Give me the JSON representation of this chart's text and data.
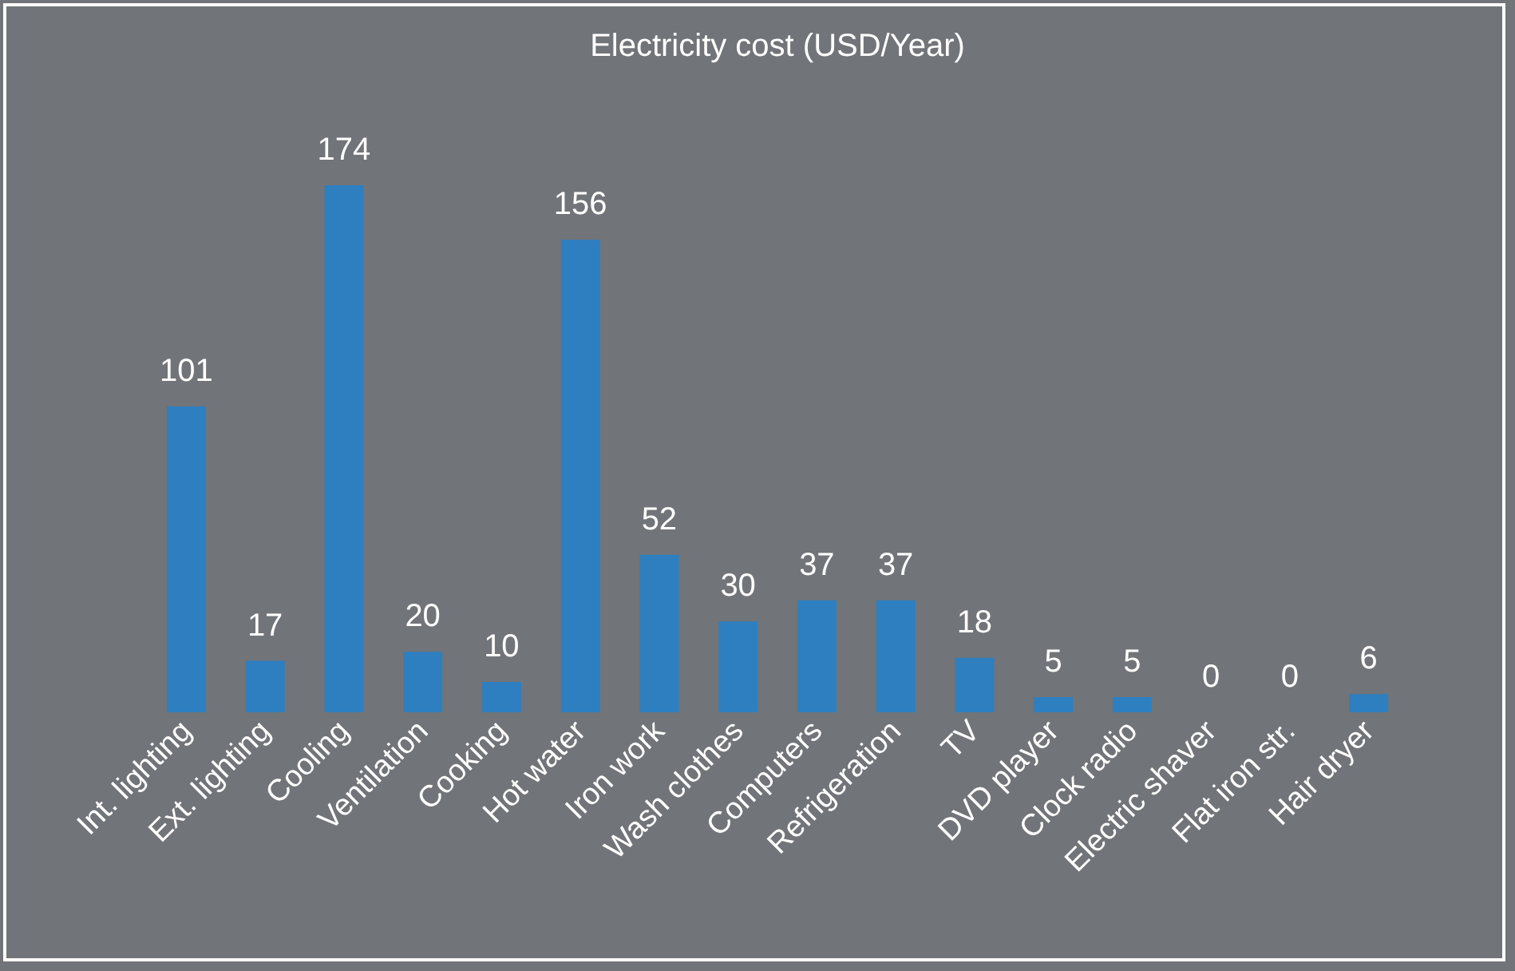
{
  "chart_data": {
    "type": "bar",
    "title": "Electricity cost (USD/Year)",
    "categories": [
      "Int. lighting",
      "Ext. lighting",
      "Cooling",
      "Ventilation",
      "Cooking",
      "Hot water",
      "Iron work",
      "Wash clothes",
      "Computers",
      "Refrigeration",
      "TV",
      "DVD player",
      "Clock radio",
      "Electric shaver",
      "Flat iron str.",
      "Hair dryer"
    ],
    "values": [
      101,
      17,
      174,
      20,
      10,
      156,
      52,
      30,
      37,
      37,
      18,
      5,
      5,
      0,
      0,
      6
    ],
    "color": "#2e7fc0",
    "data_labels": true,
    "tick_labels": "x"
  }
}
